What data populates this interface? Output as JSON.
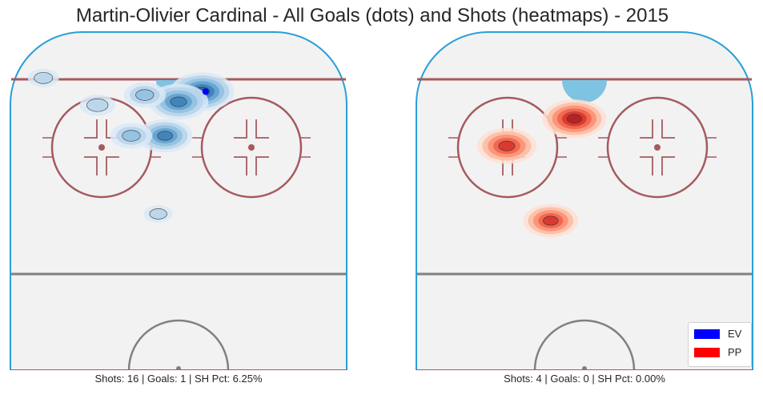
{
  "title": "Martin-Olivier Cardinal - All Goals (dots) and Shots (heatmaps) - 2015",
  "legend": [
    {
      "label": "EV",
      "color": "#0000ff"
    },
    {
      "label": "PP",
      "color": "#ff0000"
    }
  ],
  "chart_data": [
    {
      "type": "heatmap",
      "strength": "EV",
      "colormap": "Blues",
      "caption": "Shots: 16 | Goals: 1 | SH Pct: 6.25%",
      "shots": 16,
      "goals": 1,
      "sh_pct": "6.25%",
      "goal_locations": [
        [
          58,
          18
        ]
      ],
      "shot_density_hotspots": [
        {
          "x": 57,
          "y": 18,
          "weight": 1.0
        },
        {
          "x": 50,
          "y": 21,
          "weight": 0.9
        },
        {
          "x": 40,
          "y": 19,
          "weight": 0.5
        },
        {
          "x": 46,
          "y": 31,
          "weight": 0.8
        },
        {
          "x": 36,
          "y": 31,
          "weight": 0.5
        },
        {
          "x": 26,
          "y": 22,
          "weight": 0.35
        },
        {
          "x": 10,
          "y": 14,
          "weight": 0.25
        },
        {
          "x": 44,
          "y": 54,
          "weight": 0.2
        }
      ]
    },
    {
      "type": "heatmap",
      "strength": "PP",
      "colormap": "Reds",
      "caption": "Shots: 4 | Goals: 0 | SH Pct: 0.00%",
      "shots": 4,
      "goals": 0,
      "sh_pct": "0.00%",
      "goal_locations": [],
      "shot_density_hotspots": [
        {
          "x": 47,
          "y": 26,
          "weight": 1.0
        },
        {
          "x": 27,
          "y": 34,
          "weight": 0.9
        },
        {
          "x": 40,
          "y": 56,
          "weight": 0.8
        }
      ]
    }
  ]
}
